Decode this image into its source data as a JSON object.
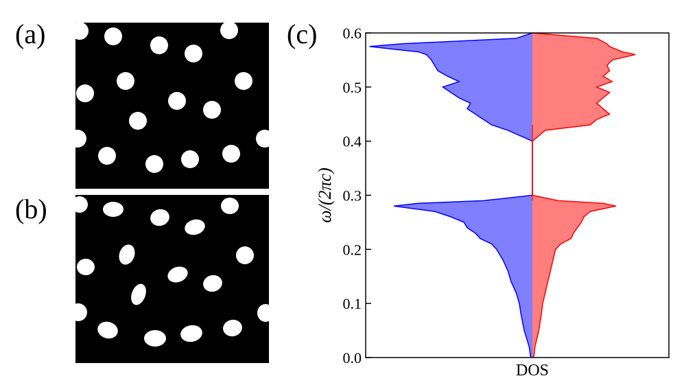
{
  "panels": {
    "a": {
      "label": "(a)"
    },
    "b": {
      "label": "(b)"
    },
    "c": {
      "label": "(c)"
    }
  },
  "colors": {
    "background": "#000000",
    "particles": "#ffffff",
    "left_line": "#0000ff",
    "left_fill": "#7f7fff",
    "right_line": "#ff0000",
    "right_fill": "#ff7f7f"
  },
  "chart_data": {
    "type": "area",
    "orientation": "horizontal-mirrored",
    "ylabel": "ω/(2πc)",
    "xlabel": "DOS",
    "ylim": [
      0,
      0.6
    ],
    "yticks": [
      "0.0",
      "0.1",
      "0.2",
      "0.3",
      "0.4",
      "0.5",
      "0.6"
    ],
    "grid": false,
    "series": [
      {
        "side": "left",
        "color": "blue",
        "y": [
          0.0,
          0.02,
          0.05,
          0.08,
          0.1,
          0.12,
          0.14,
          0.16,
          0.18,
          0.2,
          0.21,
          0.22,
          0.23,
          0.24,
          0.25,
          0.26,
          0.27,
          0.28,
          0.285,
          0.29,
          0.3,
          0.4,
          0.42,
          0.43,
          0.44,
          0.45,
          0.46,
          0.47,
          0.48,
          0.49,
          0.5,
          0.51,
          0.52,
          0.53,
          0.54,
          0.55,
          0.56,
          0.565,
          0.57,
          0.575,
          0.58,
          0.59,
          0.6
        ],
        "dos": [
          0.01,
          0.02,
          0.05,
          0.07,
          0.08,
          0.1,
          0.13,
          0.15,
          0.18,
          0.22,
          0.25,
          0.32,
          0.35,
          0.4,
          0.42,
          0.5,
          0.6,
          0.85,
          0.7,
          0.3,
          0.0,
          0.0,
          0.15,
          0.25,
          0.3,
          0.35,
          0.4,
          0.38,
          0.45,
          0.5,
          0.55,
          0.45,
          0.52,
          0.58,
          0.6,
          0.62,
          0.65,
          0.7,
          0.85,
          1.0,
          0.8,
          0.1,
          0.0
        ]
      },
      {
        "side": "right",
        "color": "red",
        "y": [
          0.0,
          0.02,
          0.05,
          0.08,
          0.1,
          0.12,
          0.14,
          0.16,
          0.18,
          0.2,
          0.21,
          0.22,
          0.23,
          0.24,
          0.25,
          0.26,
          0.27,
          0.28,
          0.285,
          0.29,
          0.3,
          0.4,
          0.42,
          0.43,
          0.44,
          0.45,
          0.46,
          0.47,
          0.48,
          0.49,
          0.5,
          0.51,
          0.52,
          0.53,
          0.54,
          0.55,
          0.56,
          0.565,
          0.57,
          0.575,
          0.58,
          0.59,
          0.6
        ],
        "dos": [
          0.01,
          0.02,
          0.05,
          0.07,
          0.08,
          0.1,
          0.12,
          0.14,
          0.16,
          0.18,
          0.22,
          0.3,
          0.32,
          0.35,
          0.38,
          0.4,
          0.45,
          0.65,
          0.55,
          0.2,
          0.0,
          0.0,
          0.1,
          0.45,
          0.5,
          0.6,
          0.55,
          0.5,
          0.55,
          0.6,
          0.5,
          0.62,
          0.55,
          0.6,
          0.58,
          0.62,
          0.8,
          0.7,
          0.65,
          0.6,
          0.58,
          0.5,
          0.0
        ]
      }
    ]
  }
}
